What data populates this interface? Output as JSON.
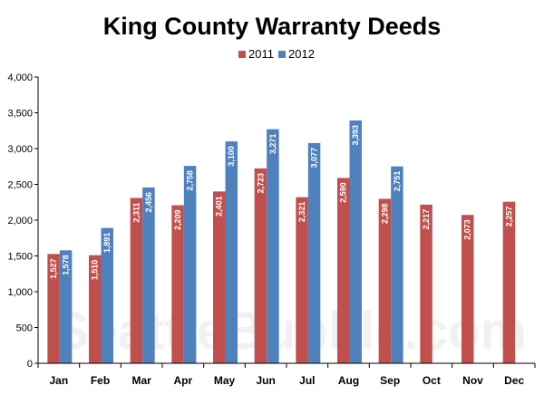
{
  "chart_data": {
    "type": "bar",
    "title": "King County Warranty Deeds",
    "categories": [
      "Jan",
      "Feb",
      "Mar",
      "Apr",
      "May",
      "Jun",
      "Jul",
      "Aug",
      "Sep",
      "Oct",
      "Nov",
      "Dec"
    ],
    "series": [
      {
        "name": "2011",
        "color": "#c0504d",
        "values": [
          1527,
          1510,
          2311,
          2209,
          2401,
          2723,
          2321,
          2590,
          2298,
          2217,
          2073,
          2257
        ],
        "labels": [
          "1,527",
          "1,510",
          "2,311",
          "2,209",
          "2,401",
          "2,723",
          "2,321",
          "2,590",
          "2,298",
          "2,217",
          "2,073",
          "2,257"
        ]
      },
      {
        "name": "2012",
        "color": "#4f81bd",
        "values": [
          1578,
          1891,
          2456,
          2758,
          3100,
          3271,
          3077,
          3393,
          2751,
          null,
          null,
          null
        ],
        "labels": [
          "1,578",
          "1,891",
          "2,456",
          "2,758",
          "3,100",
          "3,271",
          "3,077",
          "3,393",
          "2,751",
          null,
          null,
          null
        ]
      }
    ],
    "ylim": [
      0,
      4000
    ],
    "yticks": [
      0,
      500,
      1000,
      1500,
      2000,
      2500,
      3000,
      3500,
      4000
    ],
    "ytick_labels": [
      "0",
      "500",
      "1,000",
      "1,500",
      "2,000",
      "2,500",
      "3,000",
      "3,500",
      "4,000"
    ],
    "xlabel": "",
    "ylabel": "",
    "legend_position": "top-center",
    "grid": false
  },
  "watermark": "SeattleBubble.com"
}
